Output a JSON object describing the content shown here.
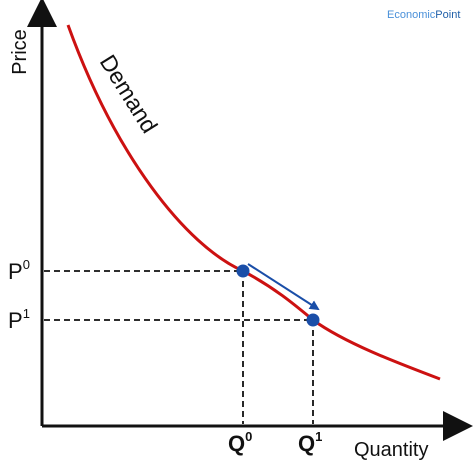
{
  "brand": {
    "prefix": "Economic",
    "suffix": "Point",
    "prefix_color": "#4a90d9",
    "suffix_color": "#1f5fa8"
  },
  "axes": {
    "y_label": "Price",
    "x_label": "Quantity"
  },
  "curve": {
    "label": "Demand",
    "color": "#cc1111"
  },
  "points": {
    "p0": {
      "base": "P",
      "sup": "0"
    },
    "p1": {
      "base": "P",
      "sup": "1"
    },
    "q0": {
      "base": "Q",
      "sup": "0"
    },
    "q1": {
      "base": "Q",
      "sup": "1"
    },
    "color": "#1a4ea8"
  },
  "movement": {
    "arrow_color": "#1a4ea8"
  }
}
